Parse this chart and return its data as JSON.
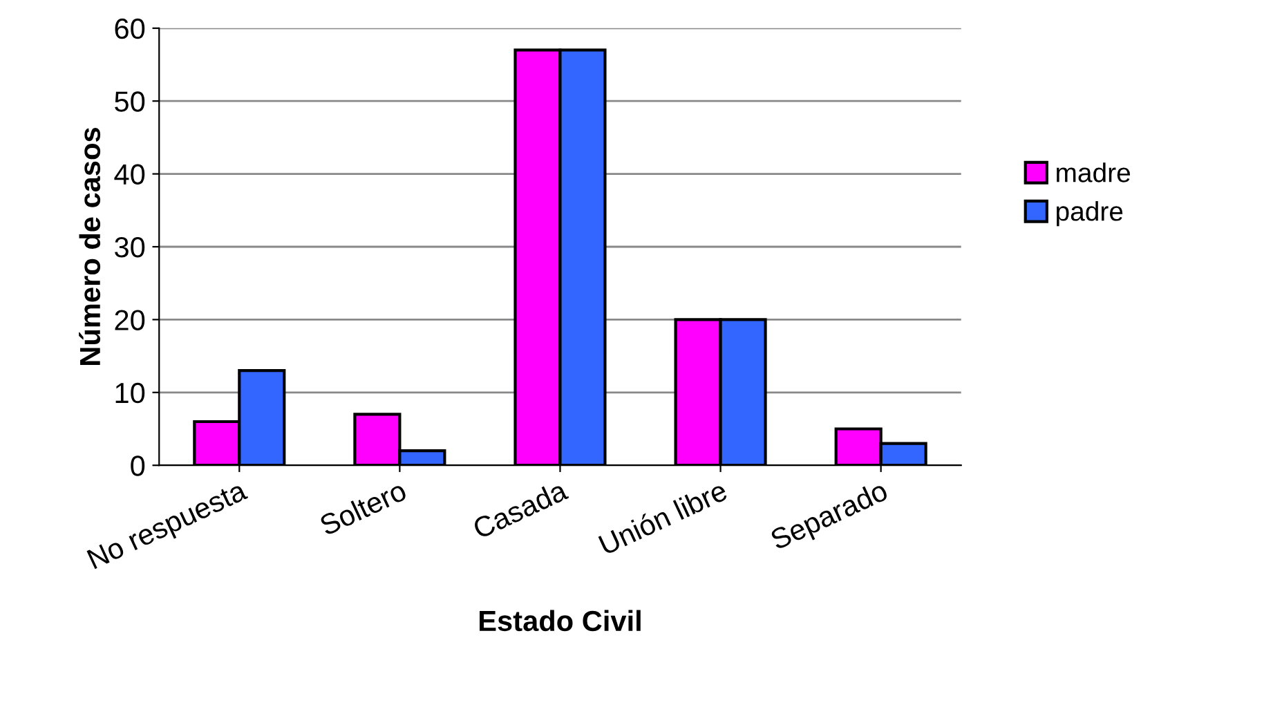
{
  "chart_data": {
    "type": "bar",
    "xlabel": "Estado Civil",
    "ylabel": "Número de casos",
    "categories": [
      "No respuesta",
      "Soltero",
      "Casada",
      "Unión libre",
      "Separado"
    ],
    "series": [
      {
        "name": "madre",
        "color": "#ff00ff",
        "values": [
          6,
          7,
          57,
          20,
          5
        ]
      },
      {
        "name": "padre",
        "color": "#3366ff",
        "values": [
          13,
          2,
          57,
          20,
          3
        ]
      }
    ],
    "ylim": [
      0,
      60
    ],
    "yticks": [
      0,
      10,
      20,
      30,
      40,
      50,
      60
    ],
    "grid": "y",
    "legend": "right"
  }
}
